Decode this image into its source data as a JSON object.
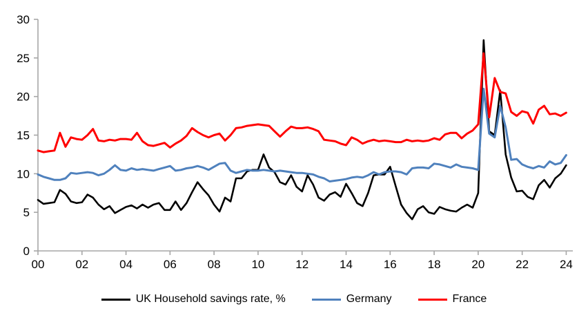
{
  "chart_data": {
    "type": "line",
    "title": "",
    "xlabel": "",
    "ylabel": "",
    "grid": false,
    "legend_position": "bottom",
    "x_start": 2000.0,
    "x_step": 0.25,
    "xlim": [
      2000.0,
      2024.35
    ],
    "ylim": [
      0,
      30
    ],
    "y_ticks": [
      0,
      5,
      10,
      15,
      20,
      25,
      30
    ],
    "y_tick_labels": [
      "0",
      "5",
      "10",
      "15",
      "20",
      "25",
      "30"
    ],
    "x_tick_years": [
      2000,
      2002,
      2004,
      2006,
      2008,
      2010,
      2012,
      2014,
      2016,
      2018,
      2020,
      2022,
      2024
    ],
    "x_tick_labels": [
      "00",
      "02",
      "04",
      "06",
      "08",
      "10",
      "12",
      "14",
      "16",
      "18",
      "20",
      "22",
      "24"
    ],
    "axis_color": "#a6a6a6",
    "tick_label_color": "#000000",
    "series": [
      {
        "name": "UK Household savings rate, %",
        "color": "#000000",
        "stroke_width": 2.6,
        "values": [
          6.6,
          6.1,
          6.2,
          6.3,
          7.9,
          7.4,
          6.4,
          6.2,
          6.3,
          7.3,
          6.9,
          6.0,
          5.4,
          5.8,
          4.9,
          5.3,
          5.7,
          5.9,
          5.5,
          6.0,
          5.6,
          6.0,
          6.2,
          5.3,
          5.3,
          6.4,
          5.3,
          6.2,
          7.6,
          8.9,
          8.0,
          7.2,
          6.0,
          5.1,
          6.9,
          6.4,
          9.4,
          9.4,
          10.3,
          10.5,
          10.5,
          12.5,
          10.8,
          10.2,
          8.9,
          8.6,
          9.8,
          8.3,
          7.7,
          9.8,
          8.6,
          6.9,
          6.5,
          7.3,
          7.6,
          7.0,
          8.7,
          7.5,
          6.2,
          5.8,
          7.5,
          9.8,
          9.9,
          9.9,
          10.9,
          8.4,
          6.0,
          4.9,
          4.1,
          5.4,
          5.8,
          5.0,
          4.8,
          5.7,
          5.4,
          5.2,
          5.1,
          5.6,
          6.0,
          5.6,
          7.5,
          27.3,
          15.5,
          15.0,
          20.8,
          12.5,
          9.5,
          7.7,
          7.8,
          7.0,
          6.7,
          8.5,
          9.2,
          8.2,
          9.4,
          10.0,
          11.1
        ]
      },
      {
        "name": "Germany",
        "color": "#4F81BD",
        "stroke_width": 3,
        "values": [
          9.9,
          9.6,
          9.4,
          9.2,
          9.2,
          9.4,
          10.1,
          10.0,
          10.1,
          10.2,
          10.1,
          9.8,
          10.0,
          10.5,
          11.1,
          10.5,
          10.4,
          10.7,
          10.5,
          10.6,
          10.5,
          10.4,
          10.6,
          10.8,
          11.0,
          10.4,
          10.5,
          10.7,
          10.8,
          11.0,
          10.8,
          10.5,
          10.9,
          11.3,
          11.4,
          10.4,
          10.1,
          10.3,
          10.5,
          10.4,
          10.4,
          10.5,
          10.4,
          10.3,
          10.4,
          10.3,
          10.2,
          10.1,
          10.1,
          10.0,
          9.9,
          9.6,
          9.4,
          9.0,
          9.1,
          9.2,
          9.3,
          9.5,
          9.6,
          9.5,
          9.8,
          10.2,
          9.9,
          10.2,
          10.3,
          10.3,
          10.2,
          9.9,
          10.7,
          10.8,
          10.8,
          10.7,
          11.3,
          11.2,
          11.0,
          10.8,
          11.2,
          10.9,
          10.8,
          10.7,
          10.5,
          21.0,
          15.2,
          14.7,
          18.8,
          16.0,
          11.8,
          11.9,
          11.2,
          10.9,
          10.7,
          11.0,
          10.8,
          11.6,
          11.2,
          11.4,
          12.4
        ]
      },
      {
        "name": "France",
        "color": "#FF0000",
        "stroke_width": 3,
        "values": [
          13.0,
          12.8,
          12.9,
          13.0,
          15.3,
          13.5,
          14.7,
          14.5,
          14.4,
          15.0,
          15.8,
          14.3,
          14.2,
          14.4,
          14.3,
          14.5,
          14.5,
          14.4,
          15.3,
          14.2,
          13.7,
          13.6,
          13.8,
          14.0,
          13.4,
          13.9,
          14.3,
          14.9,
          15.9,
          15.4,
          15.0,
          14.7,
          15.0,
          15.2,
          14.3,
          15.0,
          15.9,
          16.0,
          16.2,
          16.3,
          16.4,
          16.3,
          16.2,
          15.5,
          14.8,
          15.5,
          16.1,
          15.9,
          15.9,
          16.0,
          15.8,
          15.5,
          14.4,
          14.3,
          14.2,
          13.9,
          13.7,
          14.7,
          14.4,
          13.9,
          14.2,
          14.4,
          14.2,
          14.3,
          14.2,
          14.1,
          14.1,
          14.4,
          14.2,
          14.3,
          14.2,
          14.3,
          14.6,
          14.4,
          15.1,
          15.3,
          15.3,
          14.6,
          15.2,
          15.6,
          16.4,
          25.6,
          17.3,
          22.4,
          20.6,
          20.4,
          18.0,
          17.5,
          18.1,
          17.9,
          16.5,
          18.3,
          18.8,
          17.7,
          17.8,
          17.5,
          17.9
        ]
      }
    ]
  },
  "legend": {
    "items": [
      {
        "id": "uk",
        "label": "UK Household savings rate, %",
        "color": "#000000"
      },
      {
        "id": "germany",
        "label": "Germany",
        "color": "#4F81BD"
      },
      {
        "id": "france",
        "label": "France",
        "color": "#FF0000"
      }
    ]
  }
}
